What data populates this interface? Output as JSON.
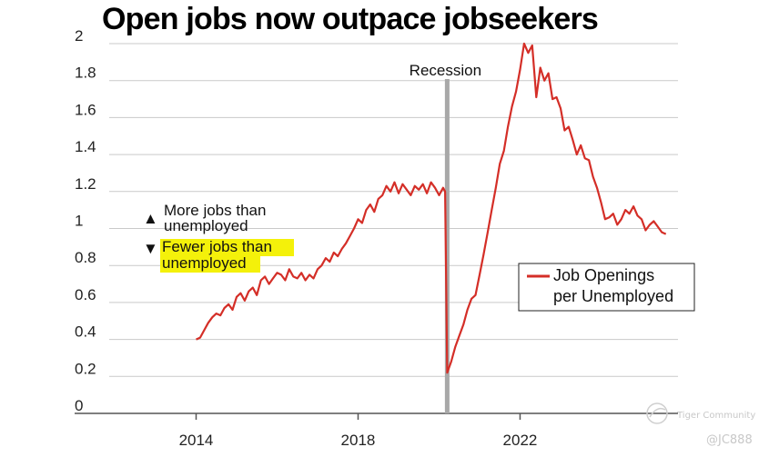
{
  "chart_data": {
    "type": "line",
    "title": "Open jobs now outpace jobseekers",
    "xlabel": "",
    "ylabel": "",
    "xlim": [
      2011.0,
      2025.9
    ],
    "ylim": [
      0,
      2
    ],
    "x_ticks": [
      2014,
      2018,
      2022
    ],
    "y_ticks": [
      0,
      0.2,
      0.4,
      0.6,
      0.8,
      1,
      1.2,
      1.4,
      1.6,
      1.8,
      2
    ],
    "grid": "horizontal",
    "recession": {
      "label": "Recession",
      "x": 2020.2
    },
    "annotations": {
      "more_marker": "▲",
      "more_line1": "More jobs than",
      "more_line2": "unemployed",
      "fewer_marker": "▼",
      "fewer_line1": "Fewer jobs than",
      "fewer_line2": "unemployed",
      "highlight_color": "#f4f10a"
    },
    "legend": {
      "line1": "Job Openings",
      "line2": "per Unemployed",
      "position": "right"
    },
    "series": [
      {
        "name": "Job Openings per Unemployed",
        "color": "#d42e27",
        "x": [
          2014.0,
          2014.1,
          2014.2,
          2014.3,
          2014.4,
          2014.5,
          2014.6,
          2014.7,
          2014.8,
          2014.9,
          2015.0,
          2015.1,
          2015.2,
          2015.3,
          2015.4,
          2015.5,
          2015.6,
          2015.7,
          2015.8,
          2015.9,
          2016.0,
          2016.1,
          2016.2,
          2016.3,
          2016.4,
          2016.5,
          2016.6,
          2016.7,
          2016.8,
          2016.9,
          2017.0,
          2017.1,
          2017.2,
          2017.3,
          2017.4,
          2017.5,
          2017.6,
          2017.7,
          2017.8,
          2017.9,
          2018.0,
          2018.1,
          2018.2,
          2018.3,
          2018.4,
          2018.5,
          2018.6,
          2018.7,
          2018.8,
          2018.9,
          2019.0,
          2019.1,
          2019.2,
          2019.3,
          2019.4,
          2019.5,
          2019.6,
          2019.7,
          2019.8,
          2019.9,
          2020.0,
          2020.1,
          2020.15,
          2020.2,
          2020.3,
          2020.4,
          2020.5,
          2020.6,
          2020.7,
          2020.8,
          2020.9,
          2021.0,
          2021.1,
          2021.2,
          2021.3,
          2021.4,
          2021.5,
          2021.6,
          2021.7,
          2021.8,
          2021.9,
          2022.0,
          2022.1,
          2022.2,
          2022.3,
          2022.4,
          2022.5,
          2022.6,
          2022.7,
          2022.8,
          2022.9,
          2023.0,
          2023.1,
          2023.2,
          2023.3,
          2023.4,
          2023.5,
          2023.6,
          2023.7,
          2023.8,
          2023.9,
          2024.0,
          2024.1,
          2024.2,
          2024.3,
          2024.4,
          2024.5,
          2024.6,
          2024.7,
          2024.8,
          2024.9,
          2025.0,
          2025.1,
          2025.2,
          2025.3,
          2025.4,
          2025.5,
          2025.6
        ],
        "values": [
          0.4,
          0.41,
          0.45,
          0.49,
          0.52,
          0.54,
          0.53,
          0.57,
          0.59,
          0.56,
          0.63,
          0.65,
          0.61,
          0.66,
          0.68,
          0.64,
          0.72,
          0.74,
          0.7,
          0.73,
          0.76,
          0.75,
          0.72,
          0.78,
          0.74,
          0.73,
          0.76,
          0.72,
          0.75,
          0.73,
          0.78,
          0.8,
          0.84,
          0.82,
          0.87,
          0.85,
          0.89,
          0.92,
          0.96,
          1.0,
          1.05,
          1.03,
          1.1,
          1.13,
          1.09,
          1.16,
          1.18,
          1.23,
          1.2,
          1.25,
          1.19,
          1.24,
          1.21,
          1.18,
          1.23,
          1.21,
          1.24,
          1.19,
          1.25,
          1.22,
          1.18,
          1.22,
          1.2,
          0.22,
          0.28,
          0.36,
          0.42,
          0.48,
          0.56,
          0.62,
          0.64,
          0.75,
          0.86,
          0.98,
          1.1,
          1.22,
          1.35,
          1.42,
          1.55,
          1.66,
          1.74,
          1.86,
          2.0,
          1.95,
          1.99,
          1.71,
          1.87,
          1.8,
          1.84,
          1.7,
          1.71,
          1.65,
          1.53,
          1.55,
          1.48,
          1.4,
          1.45,
          1.38,
          1.37,
          1.28,
          1.22,
          1.14,
          1.05,
          1.06,
          1.08,
          1.02,
          1.05,
          1.1,
          1.08,
          1.12,
          1.07,
          1.05,
          0.99,
          1.02,
          1.04,
          1.01,
          0.98,
          0.97
        ]
      }
    ]
  },
  "watermark": {
    "brand": "Tiger Community",
    "handle": "@JC888"
  }
}
